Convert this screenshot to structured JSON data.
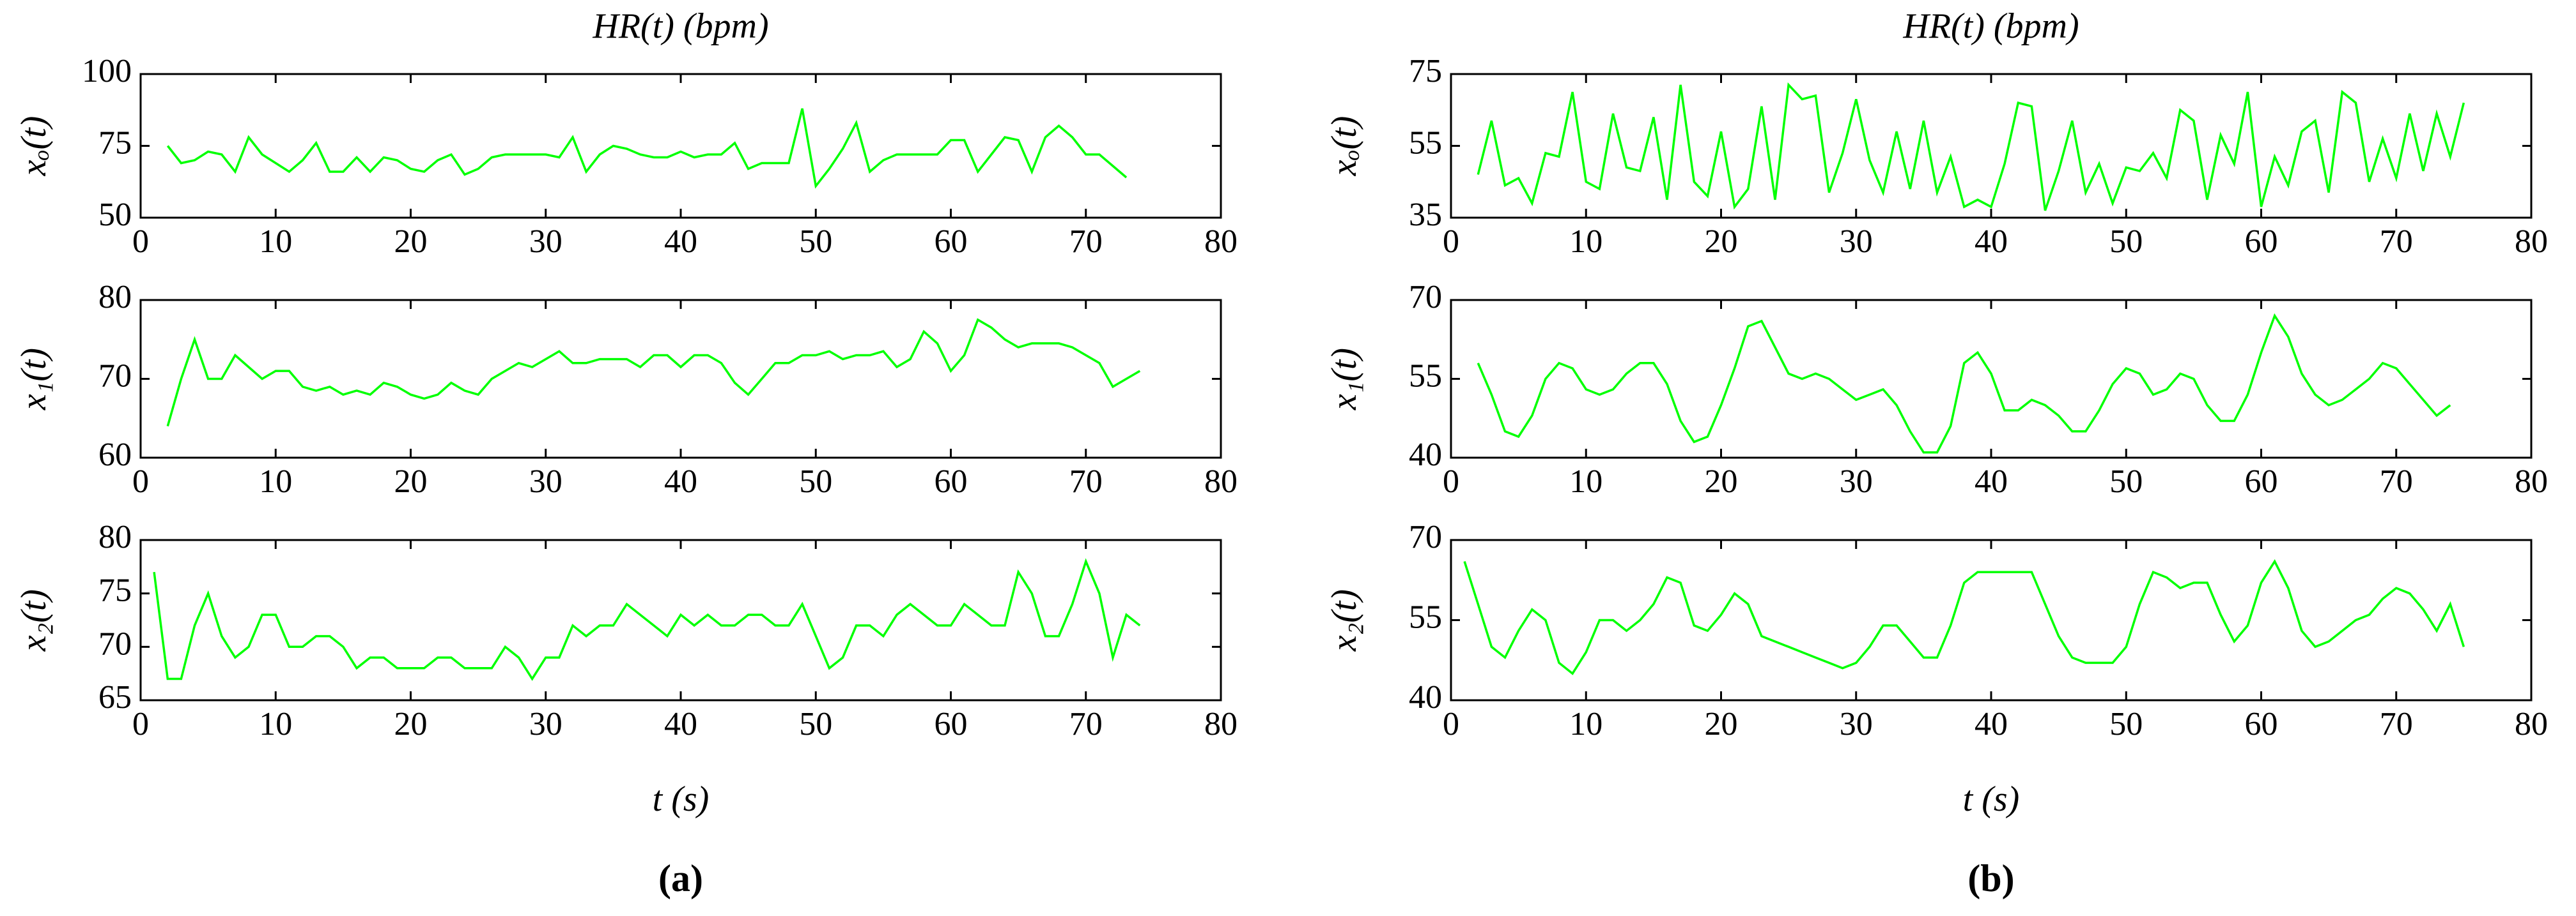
{
  "chart_data": [
    {
      "type": "line",
      "title": "HR(t) (bpm)",
      "ylabel": "xₒ(t)",
      "color": "#00ff00",
      "x": [
        2,
        3,
        4,
        5,
        6,
        7,
        8,
        9,
        10,
        11,
        12,
        13,
        14,
        15,
        16,
        17,
        18,
        19,
        20,
        21,
        22,
        23,
        24,
        25,
        26,
        27,
        28,
        29,
        30,
        31,
        32,
        33,
        34,
        35,
        36,
        37,
        38,
        39,
        40,
        41,
        42,
        43,
        44,
        45,
        46,
        47,
        48,
        49,
        50,
        51,
        52,
        53,
        54,
        55,
        56,
        57,
        58,
        59,
        60,
        61,
        62,
        63,
        64,
        65,
        66,
        67,
        68,
        69,
        70,
        71,
        72,
        73
      ],
      "values": [
        75,
        69,
        70,
        73,
        72,
        66,
        78,
        72,
        69,
        66,
        70,
        76,
        66,
        66,
        71,
        66,
        71,
        70,
        67,
        66,
        70,
        72,
        65,
        67,
        71,
        72,
        72,
        72,
        72,
        71,
        78,
        66,
        72,
        75,
        74,
        72,
        71,
        71,
        73,
        71,
        72,
        72,
        76,
        67,
        69,
        69,
        69,
        88,
        61,
        67,
        74,
        83,
        66,
        70,
        72,
        72,
        72,
        72,
        77,
        77,
        66,
        72,
        78,
        77,
        66,
        78,
        82,
        78,
        72,
        72,
        68,
        64
      ],
      "xlim": [
        0,
        80
      ],
      "xticks": [
        0,
        10,
        20,
        30,
        40,
        50,
        60,
        70,
        80
      ],
      "ylim": [
        50,
        100
      ],
      "yticks": [
        50,
        75,
        100
      ]
    },
    {
      "type": "line",
      "ylabel": "x₁(t)",
      "color": "#00ff00",
      "x": [
        2,
        3,
        4,
        5,
        6,
        7,
        8,
        9,
        10,
        11,
        12,
        13,
        14,
        15,
        16,
        17,
        18,
        19,
        20,
        21,
        22,
        23,
        24,
        25,
        26,
        27,
        28,
        29,
        30,
        31,
        32,
        33,
        34,
        35,
        36,
        37,
        38,
        39,
        40,
        41,
        42,
        43,
        44,
        45,
        46,
        47,
        48,
        49,
        50,
        51,
        52,
        53,
        54,
        55,
        56,
        57,
        58,
        59,
        60,
        61,
        62,
        63,
        64,
        65,
        66,
        67,
        68,
        69,
        70,
        71,
        72,
        73,
        74
      ],
      "values": [
        64,
        70,
        75,
        70,
        70,
        73,
        71.5,
        70,
        71,
        71,
        69,
        68.5,
        69,
        68,
        68.5,
        68,
        69.5,
        69,
        68,
        67.5,
        68,
        69.5,
        68.5,
        68,
        70,
        71,
        72,
        71.5,
        72.5,
        73.5,
        72,
        72,
        72.5,
        72.5,
        72.5,
        71.5,
        73,
        73,
        71.5,
        73,
        73,
        72,
        69.5,
        68,
        70,
        72,
        72,
        73,
        73,
        73.5,
        72.5,
        73,
        73,
        73.5,
        71.5,
        72.5,
        76,
        74.5,
        71,
        73,
        77.5,
        76.5,
        75,
        74,
        74.5,
        74.5,
        74.5,
        74,
        73,
        72,
        69,
        70,
        71
      ],
      "xlim": [
        0,
        80
      ],
      "xticks": [
        0,
        10,
        20,
        30,
        40,
        50,
        60,
        70,
        80
      ],
      "ylim": [
        60,
        80
      ],
      "yticks": [
        60,
        70,
        80
      ]
    },
    {
      "type": "line",
      "ylabel": "x₂(t)",
      "xlabel": "t (s)",
      "caption": "(a)",
      "color": "#00ff00",
      "x": [
        1,
        2,
        3,
        4,
        5,
        6,
        7,
        8,
        9,
        10,
        11,
        12,
        13,
        14,
        15,
        16,
        17,
        18,
        19,
        20,
        21,
        22,
        23,
        24,
        25,
        26,
        27,
        28,
        29,
        30,
        31,
        32,
        33,
        34,
        35,
        36,
        37,
        38,
        39,
        40,
        41,
        42,
        43,
        44,
        45,
        46,
        47,
        48,
        49,
        50,
        51,
        52,
        53,
        54,
        55,
        56,
        57,
        58,
        59,
        60,
        61,
        62,
        63,
        64,
        65,
        66,
        67,
        68,
        69,
        70,
        71,
        72,
        73,
        74
      ],
      "values": [
        77,
        67,
        67,
        72,
        75,
        71,
        69,
        70,
        73,
        73,
        70,
        70,
        71,
        71,
        70,
        68,
        69,
        69,
        68,
        68,
        68,
        69,
        69,
        68,
        68,
        68,
        70,
        69,
        67,
        69,
        69,
        72,
        71,
        72,
        72,
        74,
        73,
        72,
        71,
        73,
        72,
        73,
        72,
        72,
        73,
        73,
        72,
        72,
        74,
        71,
        68,
        69,
        72,
        72,
        71,
        73,
        74,
        73,
        72,
        72,
        74,
        73,
        72,
        72,
        77,
        75,
        71,
        71,
        74,
        78,
        75,
        69,
        73,
        72
      ],
      "xlim": [
        0,
        80
      ],
      "xticks": [
        0,
        10,
        20,
        30,
        40,
        50,
        60,
        70,
        80
      ],
      "ylim": [
        65,
        80
      ],
      "yticks": [
        65,
        70,
        75,
        80
      ]
    },
    {
      "type": "line",
      "title": "HR(t) (bpm)",
      "ylabel": "xₒ(t)",
      "color": "#00ff00",
      "x": [
        2,
        3,
        4,
        5,
        6,
        7,
        8,
        9,
        10,
        11,
        12,
        13,
        14,
        15,
        16,
        17,
        18,
        19,
        20,
        21,
        22,
        23,
        24,
        25,
        26,
        27,
        28,
        29,
        30,
        31,
        32,
        33,
        34,
        35,
        36,
        37,
        38,
        39,
        40,
        41,
        42,
        43,
        44,
        45,
        46,
        47,
        48,
        49,
        50,
        51,
        52,
        53,
        54,
        55,
        56,
        57,
        58,
        59,
        60,
        61,
        62,
        63,
        64,
        65,
        66,
        67,
        68,
        69,
        70,
        71,
        72,
        73,
        74,
        75
      ],
      "values": [
        47,
        62,
        44,
        46,
        39,
        53,
        52,
        70,
        45,
        43,
        64,
        49,
        48,
        63,
        40,
        72,
        45,
        41,
        59,
        38,
        43,
        66,
        40,
        72,
        68,
        69,
        42,
        53,
        68,
        51,
        42,
        59,
        43,
        62,
        42,
        52,
        38,
        40,
        38,
        50,
        67,
        66,
        37,
        48,
        62,
        42,
        50,
        39,
        49,
        48,
        53,
        46,
        65,
        62,
        40,
        58,
        50,
        70,
        38,
        52,
        44,
        59,
        62,
        42,
        70,
        67,
        45,
        57,
        46,
        64,
        48,
        64,
        52,
        67
      ],
      "xlim": [
        0,
        80
      ],
      "xticks": [
        0,
        10,
        20,
        30,
        40,
        50,
        60,
        70,
        80
      ],
      "ylim": [
        35,
        75
      ],
      "yticks": [
        35,
        55,
        75
      ]
    },
    {
      "type": "line",
      "ylabel": "x₁(t)",
      "color": "#00ff00",
      "x": [
        2,
        3,
        4,
        5,
        6,
        7,
        8,
        9,
        10,
        11,
        12,
        13,
        14,
        15,
        16,
        17,
        18,
        19,
        20,
        21,
        22,
        23,
        24,
        25,
        26,
        27,
        28,
        29,
        30,
        31,
        32,
        33,
        34,
        35,
        36,
        37,
        38,
        39,
        40,
        41,
        42,
        43,
        44,
        45,
        46,
        47,
        48,
        49,
        50,
        51,
        52,
        53,
        54,
        55,
        56,
        57,
        58,
        59,
        60,
        61,
        62,
        63,
        64,
        65,
        66,
        67,
        68,
        69,
        70,
        71,
        72,
        73,
        74
      ],
      "values": [
        58,
        52,
        45,
        44,
        48,
        55,
        58,
        57,
        53,
        52,
        53,
        56,
        58,
        58,
        54,
        47,
        43,
        44,
        50,
        57,
        65,
        66,
        61,
        56,
        55,
        56,
        55,
        53,
        51,
        52,
        53,
        50,
        45,
        41,
        41,
        46,
        58,
        60,
        56,
        49,
        49,
        51,
        50,
        48,
        45,
        45,
        49,
        54,
        57,
        56,
        52,
        53,
        56,
        55,
        50,
        47,
        47,
        52,
        60,
        67,
        63,
        56,
        52,
        50,
        51,
        53,
        55,
        58,
        57,
        54,
        51,
        48,
        50
      ],
      "xlim": [
        0,
        80
      ],
      "xticks": [
        0,
        10,
        20,
        30,
        40,
        50,
        60,
        70,
        80
      ],
      "ylim": [
        40,
        70
      ],
      "yticks": [
        40,
        55,
        70
      ]
    },
    {
      "type": "line",
      "ylabel": "x₂(t)",
      "xlabel": "t (s)",
      "caption": "(b)",
      "color": "#00ff00",
      "x": [
        1,
        2,
        3,
        4,
        5,
        6,
        7,
        8,
        9,
        10,
        11,
        12,
        13,
        14,
        15,
        16,
        17,
        18,
        19,
        20,
        21,
        22,
        23,
        24,
        25,
        26,
        27,
        28,
        29,
        30,
        31,
        32,
        33,
        34,
        35,
        36,
        37,
        38,
        39,
        40,
        41,
        42,
        43,
        44,
        45,
        46,
        47,
        48,
        49,
        50,
        51,
        52,
        53,
        54,
        55,
        56,
        57,
        58,
        59,
        60,
        61,
        62,
        63,
        64,
        65,
        66,
        67,
        68,
        69,
        70,
        71,
        72,
        73,
        74,
        75
      ],
      "values": [
        66,
        58,
        50,
        48,
        53,
        57,
        55,
        47,
        45,
        49,
        55,
        55,
        53,
        55,
        58,
        63,
        62,
        54,
        53,
        56,
        60,
        58,
        52,
        51,
        50,
        49,
        48,
        47,
        46,
        47,
        50,
        54,
        54,
        51,
        48,
        48,
        54,
        62,
        64,
        64,
        64,
        64,
        64,
        58,
        52,
        48,
        47,
        47,
        47,
        50,
        58,
        64,
        63,
        61,
        62,
        62,
        56,
        51,
        54,
        62,
        66,
        61,
        53,
        50,
        51,
        53,
        55,
        56,
        59,
        61,
        60,
        57,
        53,
        58,
        50
      ],
      "xlim": [
        0,
        80
      ],
      "xticks": [
        0,
        10,
        20,
        30,
        40,
        50,
        60,
        70,
        80
      ],
      "ylim": [
        40,
        70
      ],
      "yticks": [
        40,
        55,
        70
      ]
    }
  ]
}
